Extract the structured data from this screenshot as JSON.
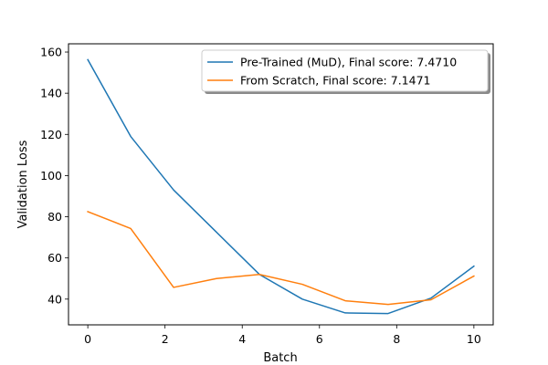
{
  "chart_data": {
    "type": "line",
    "title": "",
    "xlabel": "Batch",
    "ylabel": "Validation Loss",
    "xlim": [
      -0.5,
      10.5
    ],
    "ylim": [
      27.5,
      164
    ],
    "xticks": [
      0,
      2,
      4,
      6,
      8,
      10
    ],
    "yticks": [
      40,
      60,
      80,
      100,
      120,
      140,
      160
    ],
    "grid": false,
    "legend_position": "top-right",
    "series": [
      {
        "name": "Pre-Trained (MuD), Final score: 7.4710",
        "color": "#1f77b4",
        "x": [
          0,
          1.111,
          2.222,
          3.333,
          4.444,
          5.556,
          6.667,
          7.778,
          8.889,
          10
        ],
        "y": [
          156.3,
          119,
          93,
          72.5,
          52,
          40,
          33.3,
          33,
          40.5,
          56
        ]
      },
      {
        "name": "From Scratch, Final score: 7.1471",
        "color": "#ff7f0e",
        "x": [
          0,
          1.111,
          2.222,
          3.333,
          4.444,
          5.556,
          6.667,
          7.778,
          8.889,
          10
        ],
        "y": [
          82.5,
          74.3,
          45.7,
          50,
          52,
          47.2,
          39.2,
          37.4,
          39.7,
          51.2
        ]
      }
    ]
  }
}
